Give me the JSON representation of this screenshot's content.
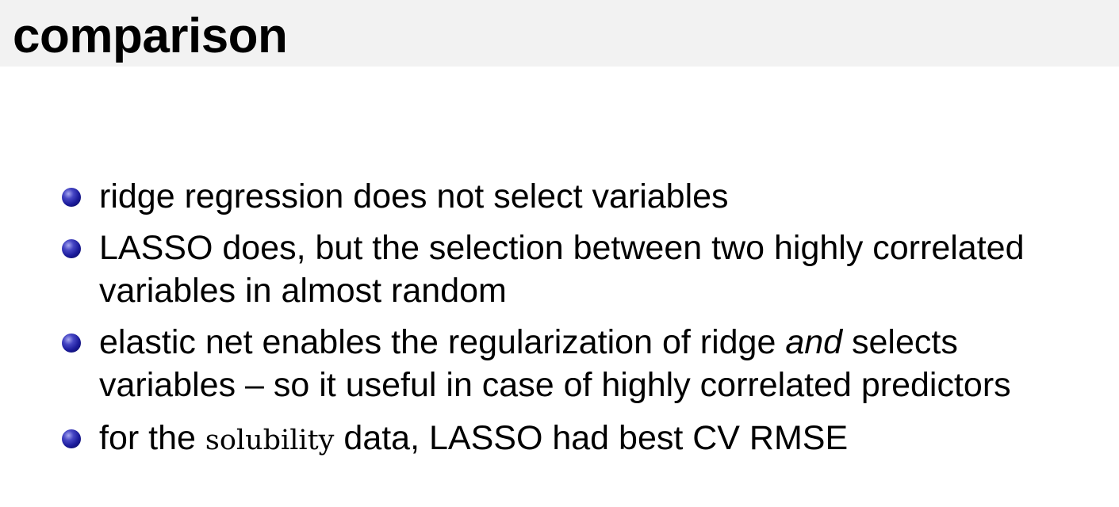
{
  "header": {
    "title": "comparison"
  },
  "bullets": [
    {
      "text": "ridge regression does not select variables"
    },
    {
      "line1": "LASSO does, but the selection between two highly correlated",
      "line2": "variables in almost random"
    },
    {
      "line1_before": "elastic net enables the regularization of ridge ",
      "line1_emphasis": "and",
      "line1_after": " selects",
      "line2": "variables – so it useful in case of highly correlated predictors"
    },
    {
      "before": "for the ",
      "code": "solubility",
      "after": " data, LASSO had best CV RMSE"
    }
  ],
  "colors": {
    "title_bar_background": "#f2f2f2",
    "bullet_color": "#1a1a9a"
  }
}
